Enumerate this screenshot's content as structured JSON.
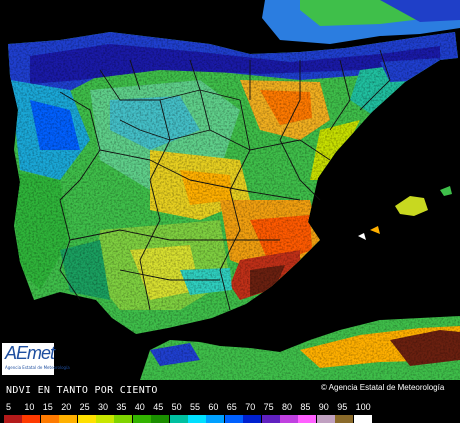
{
  "map": {
    "title": "NDVI EN TANTO POR CIENTO",
    "credit": "© Agencia Estatal de Meteorología",
    "logo": {
      "text": "AEmet",
      "subtitle": "Agencia Estatal de Meteorología"
    }
  },
  "legend": {
    "items": [
      {
        "label": "5",
        "color": "#b41a1a"
      },
      {
        "label": "10",
        "color": "#ff3a00"
      },
      {
        "label": "15",
        "color": "#ff7a00"
      },
      {
        "label": "20",
        "color": "#ffb000"
      },
      {
        "label": "25",
        "color": "#ffe000"
      },
      {
        "label": "30",
        "color": "#c8e600"
      },
      {
        "label": "35",
        "color": "#7fd400"
      },
      {
        "label": "40",
        "color": "#33b400"
      },
      {
        "label": "45",
        "color": "#1a8f00"
      },
      {
        "label": "50",
        "color": "#00c0a0"
      },
      {
        "label": "55",
        "color": "#00e0ff"
      },
      {
        "label": "60",
        "color": "#00a0ff"
      },
      {
        "label": "65",
        "color": "#0060ff"
      },
      {
        "label": "70",
        "color": "#0020d0"
      },
      {
        "label": "75",
        "color": "#6020c0"
      },
      {
        "label": "80",
        "color": "#c040e0"
      },
      {
        "label": "85",
        "color": "#ff60ff"
      },
      {
        "label": "90",
        "color": "#c0a0c0"
      },
      {
        "label": "95",
        "color": "#8a6a2a"
      },
      {
        "label": "100",
        "color": "#ffffff"
      }
    ]
  }
}
